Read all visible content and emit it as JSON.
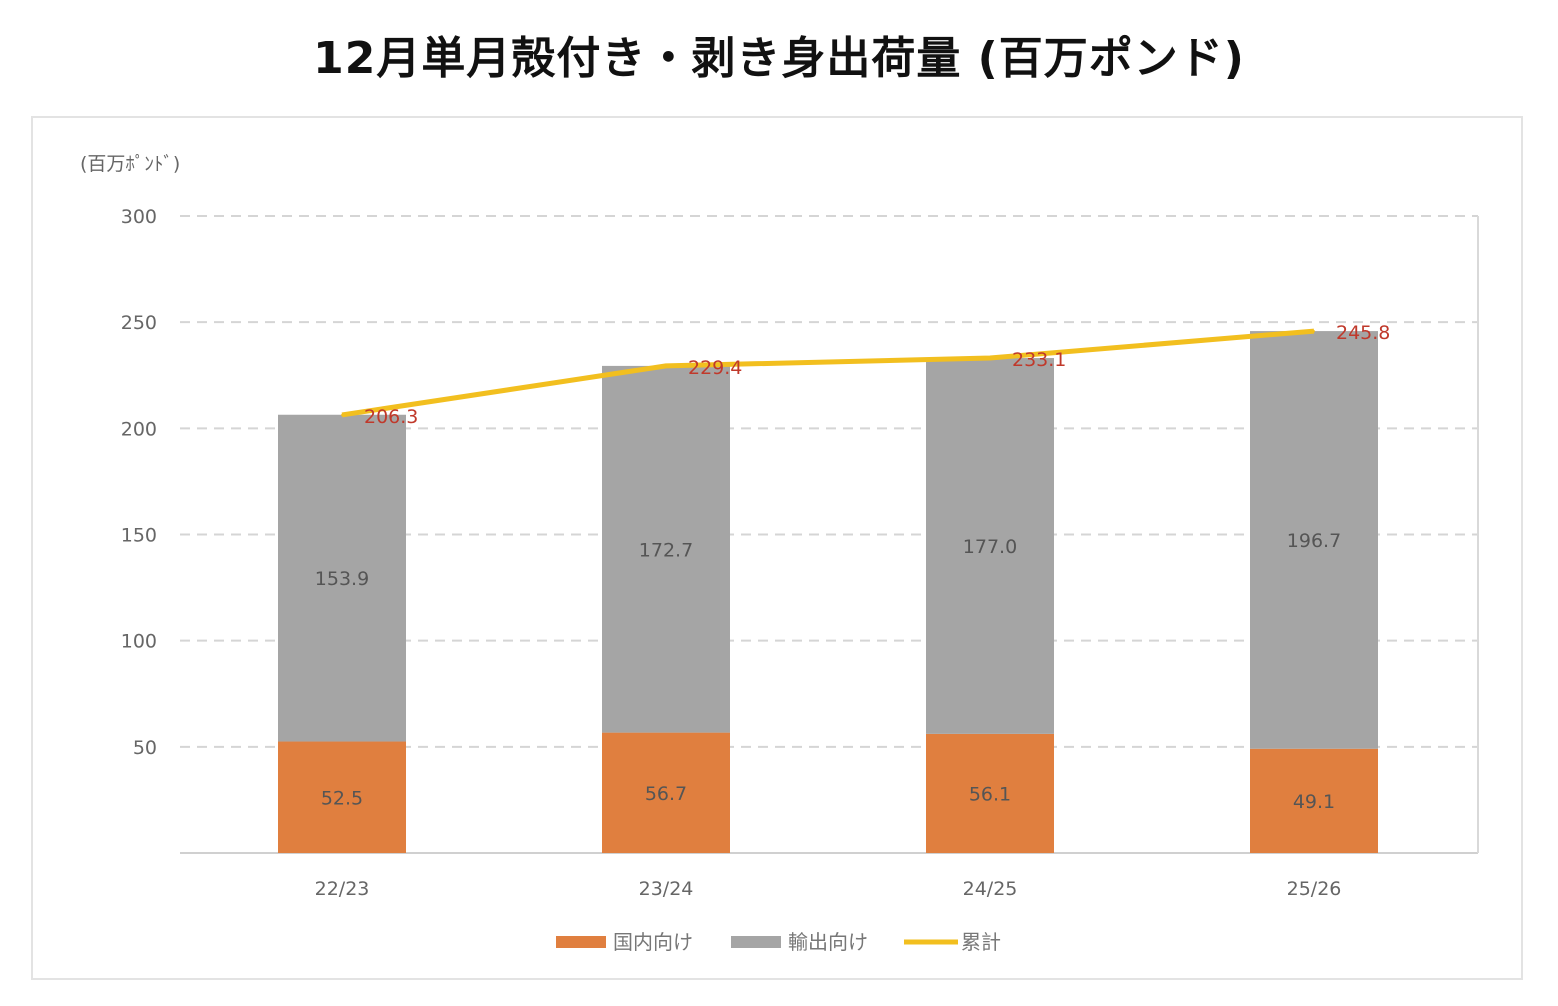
{
  "title": "12月単月殻付き・剥き身出荷量 (百万ポンド)",
  "chart_data": {
    "type": "bar",
    "stacked": true,
    "title": "12月単月殻付き・剥き身出荷量 (百万ポンド)",
    "ylabel": "(百万ﾎﾟﾝﾄﾞ)",
    "xlabel": "",
    "ylim": [
      0,
      300
    ],
    "yticks": [
      50,
      100,
      150,
      200,
      250,
      300
    ],
    "ytick_labels": [
      "50",
      "100",
      "150",
      "200",
      "250",
      "300"
    ],
    "grid": true,
    "legend_position": "bottom",
    "categories": [
      "22/23",
      "23/24",
      "24/25",
      "25/26"
    ],
    "series": [
      {
        "name": "国内向け",
        "type": "bar",
        "color": "#e07f3f",
        "values": [
          52.5,
          56.7,
          56.1,
          49.1
        ],
        "labels": [
          "52.5",
          "56.7",
          "56.1",
          "49.1"
        ]
      },
      {
        "name": "輸出向け",
        "type": "bar",
        "color": "#a5a5a5",
        "values": [
          153.9,
          172.7,
          177.0,
          196.7
        ],
        "labels": [
          "153.9",
          "172.7",
          "177.0",
          "196.7"
        ]
      },
      {
        "name": "累計",
        "type": "line",
        "color": "#f2bf1f",
        "values": [
          206.3,
          229.4,
          233.1,
          245.8
        ],
        "labels": [
          "206.3",
          "229.4",
          "233.1",
          "245.8"
        ]
      }
    ]
  }
}
